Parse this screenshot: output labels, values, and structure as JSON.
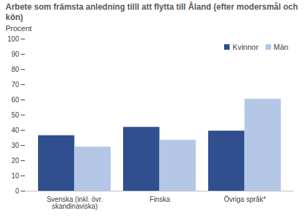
{
  "chart_data": {
    "type": "bar",
    "title": "Arbete som främsta anledning tilll att flytta till Åland (efter modersmål och kön)",
    "y_label": "Procent",
    "categories": [
      "Svenska (inkl. övr. skandinaviska)",
      "Finska",
      "Övriga språk*"
    ],
    "series": [
      {
        "name": "Kvinnor",
        "color": "#2f4f8f",
        "values": [
          36.5,
          42,
          39.5
        ]
      },
      {
        "name": "Män",
        "color": "#b4c7e7",
        "values": [
          29,
          33.5,
          60.5
        ]
      }
    ],
    "ylim": [
      0,
      100
    ],
    "yticks": [
      0,
      10,
      20,
      30,
      40,
      50,
      60,
      70,
      80,
      90,
      100
    ],
    "grid": false,
    "legend": "top-right"
  }
}
